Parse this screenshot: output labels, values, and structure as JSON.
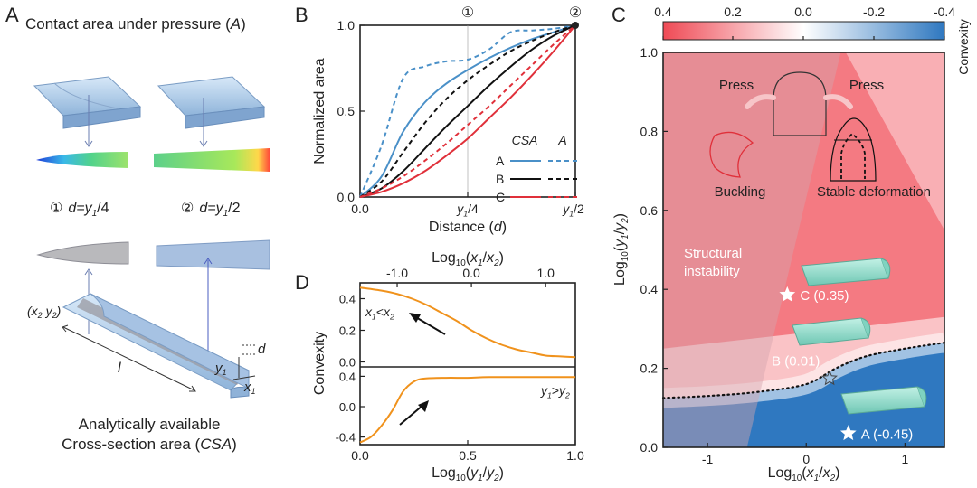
{
  "panel_A": {
    "letter": "A",
    "title": "Contact area under pressure (",
    "title_var": "A",
    "title_end": ")",
    "label_1_num": "①",
    "label_1": "d=y",
    "label_1_sub": "1",
    "label_1_end": "/4",
    "label_2_num": "②",
    "label_2": "d=y",
    "label_2_sub": "1",
    "label_2_end": "/2",
    "coord_label": "(x",
    "coord_sub2": "2",
    "coord_mid": " y",
    "coord_sub2b": "2",
    "coord_end": ")",
    "dim_d": "d",
    "dim_l": "l",
    "dim_y": "y",
    "dim_y_sub": "1",
    "dim_x": "x",
    "dim_x_sub": "1",
    "caption_line1": "Analytically available",
    "caption_line2": "Cross-section area (",
    "caption_var": "CSA",
    "caption_end": ")"
  },
  "chart_data": [
    {
      "panel": "B",
      "type": "line",
      "xlabel": "Distance (d)",
      "ylabel": "Normalized area",
      "x_ticks": [
        "0.0",
        "y1/4",
        "y1/2"
      ],
      "y_ticks": [
        "0.0",
        "0.5",
        "1.0"
      ],
      "top_markers": [
        "①",
        "②"
      ],
      "xlim": [
        0,
        1
      ],
      "ylim": [
        0,
        1
      ],
      "legend_header": [
        "CSA",
        "A"
      ],
      "x": [
        0,
        0.1,
        0.2,
        0.3,
        0.4,
        0.5,
        0.6,
        0.7,
        0.8,
        0.9,
        1.0
      ],
      "series": [
        {
          "name": "A",
          "kind": "CSA",
          "color": "#4a90c8",
          "dash": false,
          "values": [
            0,
            0.12,
            0.38,
            0.55,
            0.66,
            0.74,
            0.81,
            0.87,
            0.92,
            0.96,
            1.0
          ]
        },
        {
          "name": "A",
          "kind": "A",
          "color": "#4a90c8",
          "dash": true,
          "values": [
            0,
            0.3,
            0.69,
            0.76,
            0.79,
            0.8,
            0.86,
            0.96,
            0.97,
            0.98,
            1.0
          ]
        },
        {
          "name": "B",
          "kind": "CSA",
          "color": "#111111",
          "dash": false,
          "values": [
            0,
            0.05,
            0.15,
            0.28,
            0.41,
            0.53,
            0.65,
            0.76,
            0.86,
            0.94,
            1.0
          ]
        },
        {
          "name": "B",
          "kind": "A",
          "color": "#111111",
          "dash": true,
          "values": [
            0,
            0.09,
            0.26,
            0.43,
            0.57,
            0.68,
            0.77,
            0.85,
            0.91,
            0.96,
            1.0
          ]
        },
        {
          "name": "C",
          "kind": "CSA",
          "color": "#e0303a",
          "dash": false,
          "values": [
            0,
            0.03,
            0.08,
            0.15,
            0.24,
            0.34,
            0.46,
            0.58,
            0.71,
            0.85,
            1.0
          ]
        },
        {
          "name": "C",
          "kind": "A",
          "color": "#e0303a",
          "dash": true,
          "values": [
            0,
            0.05,
            0.12,
            0.21,
            0.31,
            0.42,
            0.53,
            0.65,
            0.77,
            0.89,
            1.0
          ]
        }
      ]
    },
    {
      "panel": "D-top",
      "type": "line",
      "xlabel_top": "Log10(x1/x2)",
      "ylabel": "Convexity",
      "x_ticks": [
        "-1.0",
        "0.0",
        "1.0"
      ],
      "y_ticks": [
        "0.0",
        "0.2",
        "0.4"
      ],
      "xlim": [
        -1.5,
        1.4
      ],
      "ylim": [
        -0.02,
        0.5
      ],
      "annotation": "x1<x2",
      "color": "#f0921c",
      "x": [
        -1.5,
        -1.2,
        -1.0,
        -0.8,
        -0.6,
        -0.4,
        -0.2,
        0.0,
        0.2,
        0.4,
        0.6,
        0.8,
        1.0,
        1.2,
        1.4
      ],
      "values": [
        0.47,
        0.45,
        0.43,
        0.4,
        0.36,
        0.31,
        0.26,
        0.2,
        0.15,
        0.11,
        0.08,
        0.06,
        0.04,
        0.035,
        0.03
      ]
    },
    {
      "panel": "D-bottom",
      "type": "line",
      "xlabel": "Log10(y1/y2)",
      "y_ticks": [
        "-0.4",
        "0.0",
        "0.4"
      ],
      "x_ticks": [
        "0.0",
        "0.5",
        "1.0"
      ],
      "xlim": [
        0,
        1
      ],
      "ylim": [
        -0.5,
        0.5
      ],
      "annotation": "y1>y2",
      "color": "#f0921c",
      "x": [
        0,
        0.05,
        0.1,
        0.15,
        0.2,
        0.25,
        0.3,
        0.4,
        0.5,
        0.6,
        0.8,
        1.0
      ],
      "values": [
        -0.47,
        -0.4,
        -0.25,
        -0.05,
        0.2,
        0.33,
        0.37,
        0.38,
        0.38,
        0.39,
        0.39,
        0.39
      ]
    },
    {
      "panel": "C",
      "type": "heatmap",
      "xlabel": "Log10(x1/x2)",
      "ylabel": "Log10(y1/y2)",
      "x_ticks": [
        "-1",
        "0",
        "1"
      ],
      "y_ticks": [
        "0.0",
        "0.2",
        "0.4",
        "0.6",
        "0.8",
        "1.0"
      ],
      "xlim": [
        -1.45,
        1.4
      ],
      "ylim": [
        0,
        1
      ],
      "colorbar_label": "Convexity",
      "colorbar_ticks": [
        "0.4",
        "0.2",
        "0.0",
        "-0.2",
        "-0.4"
      ],
      "colors": {
        "positive": "#f0606a",
        "zero": "#ffffff",
        "negative": "#2f78c0"
      },
      "region_labels": [
        "Structural",
        "instability"
      ],
      "inset_labels": {
        "press_left": "Press",
        "press_right": "Press",
        "buckling": "Buckling",
        "stable": "Stable deformation"
      },
      "points": [
        {
          "label": "C (0.35)",
          "x": -0.1,
          "y": 0.4
        },
        {
          "label": "B (0.01)",
          "x": 0.2,
          "y": 0.17
        },
        {
          "label": "A (-0.45)",
          "x": 0.5,
          "y": 0.04
        }
      ],
      "boundary_x": [
        -1.45,
        -1.0,
        -0.5,
        0.0,
        0.3,
        0.6,
        1.0,
        1.4
      ],
      "boundary_y": [
        0.125,
        0.13,
        0.14,
        0.16,
        0.2,
        0.23,
        0.25,
        0.265
      ]
    }
  ],
  "panel_B_letter": "B",
  "panel_C_letter": "C",
  "panel_D_letter": "D"
}
